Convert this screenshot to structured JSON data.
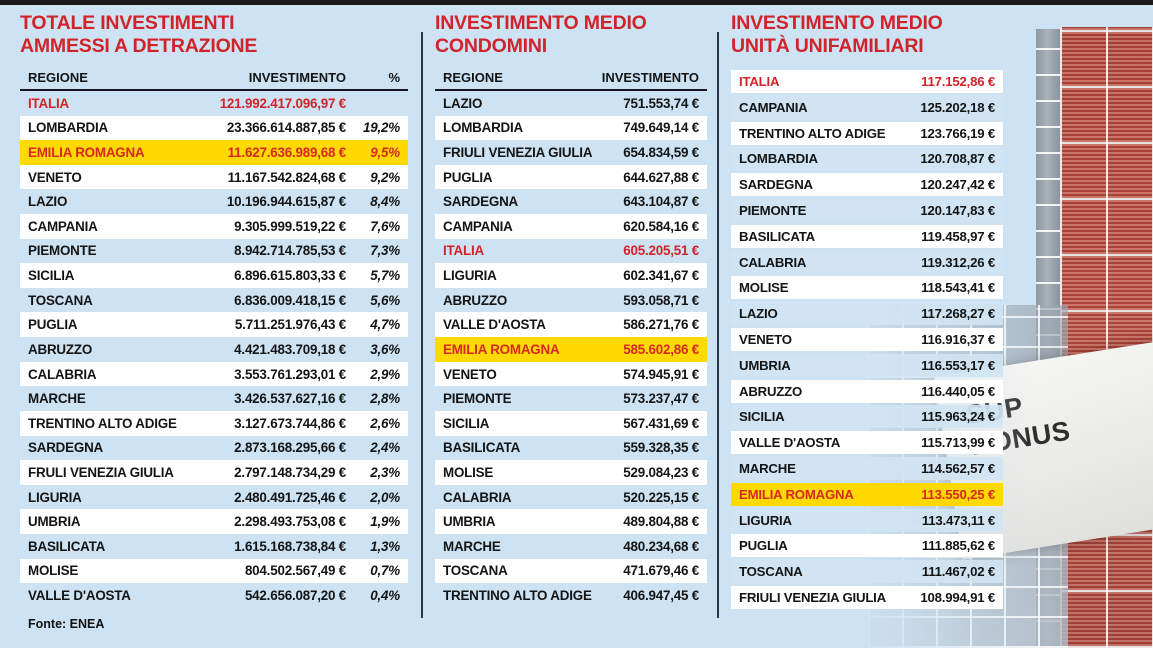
{
  "page": {
    "source_label": "Fonte: ENEA",
    "colors": {
      "background": "#cde2f2",
      "accent_red": "#d2232a",
      "highlight_yellow": "#ffd900",
      "top_bar": "#1a1a1a"
    }
  },
  "photo": {
    "banner_line1": "SUP",
    "banner_line2": "BONUS"
  },
  "chart_data": [
    {
      "type": "table",
      "title_line1": "TOTALE INVESTIMENTI",
      "title_line2": "AMMESSI A DETRAZIONE",
      "columns": {
        "region": "REGIONE",
        "value": "INVESTIMENTO",
        "percent": "%"
      },
      "rows": [
        {
          "region": "ITALIA",
          "value": "121.992.417.096,97 €",
          "percent": "",
          "total": true
        },
        {
          "region": "LOMBARDIA",
          "value": "23.366.614.887,85 €",
          "percent": "19,2%"
        },
        {
          "region": "EMILIA ROMAGNA",
          "value": "11.627.636.989,68 €",
          "percent": "9,5%",
          "highlight": true
        },
        {
          "region": "VENETO",
          "value": "11.167.542.824,68 €",
          "percent": "9,2%"
        },
        {
          "region": "LAZIO",
          "value": "10.196.944.615,87 €",
          "percent": "8,4%"
        },
        {
          "region": "CAMPANIA",
          "value": "9.305.999.519,22 €",
          "percent": "7,6%"
        },
        {
          "region": "PIEMONTE",
          "value": "8.942.714.785,53 €",
          "percent": "7,3%"
        },
        {
          "region": "SICILIA",
          "value": "6.896.615.803,33 €",
          "percent": "5,7%"
        },
        {
          "region": "TOSCANA",
          "value": "6.836.009.418,15 €",
          "percent": "5,6%"
        },
        {
          "region": "PUGLIA",
          "value": "5.711.251.976,43 €",
          "percent": "4,7%"
        },
        {
          "region": "ABRUZZO",
          "value": "4.421.483.709,18 €",
          "percent": "3,6%"
        },
        {
          "region": "CALABRIA",
          "value": "3.553.761.293,01 €",
          "percent": "2,9%"
        },
        {
          "region": "MARCHE",
          "value": "3.426.537.627,16 €",
          "percent": "2,8%"
        },
        {
          "region": "TRENTINO ALTO ADIGE",
          "value": "3.127.673.744,86 €",
          "percent": "2,6%"
        },
        {
          "region": "SARDEGNA",
          "value": "2.873.168.295,66 €",
          "percent": "2,4%"
        },
        {
          "region": "FRULI VENEZIA GIULIA",
          "value": "2.797.148.734,29 €",
          "percent": "2,3%"
        },
        {
          "region": "LIGURIA",
          "value": "2.480.491.725,46 €",
          "percent": "2,0%"
        },
        {
          "region": "UMBRIA",
          "value": "2.298.493.753,08 €",
          "percent": "1,9%"
        },
        {
          "region": "BASILICATA",
          "value": "1.615.168.738,84 €",
          "percent": "1,3%"
        },
        {
          "region": "MOLISE",
          "value": "804.502.567,49 €",
          "percent": "0,7%"
        },
        {
          "region": "VALLE D'AOSTA",
          "value": "542.656.087,20 €",
          "percent": "0,4%"
        }
      ]
    },
    {
      "type": "table",
      "title_line1": "INVESTIMENTO MEDIO",
      "title_line2": "CONDOMINI",
      "columns": {
        "region": "REGIONE",
        "value": "INVESTIMENTO"
      },
      "rows": [
        {
          "region": "LAZIO",
          "value": "751.553,74 €"
        },
        {
          "region": "LOMBARDIA",
          "value": "749.649,14 €"
        },
        {
          "region": "FRIULI VENEZIA GIULIA",
          "value": "654.834,59 €"
        },
        {
          "region": "PUGLIA",
          "value": "644.627,88 €"
        },
        {
          "region": "SARDEGNA",
          "value": "643.104,87 €"
        },
        {
          "region": "CAMPANIA",
          "value": "620.584,16 €"
        },
        {
          "region": "ITALIA",
          "value": "605.205,51 €",
          "total": true
        },
        {
          "region": "LIGURIA",
          "value": "602.341,67 €"
        },
        {
          "region": "ABRUZZO",
          "value": "593.058,71 €"
        },
        {
          "region": "VALLE D'AOSTA",
          "value": "586.271,76 €"
        },
        {
          "region": "EMILIA ROMAGNA",
          "value": "585.602,86 €",
          "highlight": true
        },
        {
          "region": "VENETO",
          "value": "574.945,91 €"
        },
        {
          "region": "PIEMONTE",
          "value": "573.237,47 €"
        },
        {
          "region": "SICILIA",
          "value": "567.431,69 €"
        },
        {
          "region": "BASILICATA",
          "value": "559.328,35 €"
        },
        {
          "region": "MOLISE",
          "value": "529.084,23 €"
        },
        {
          "region": "CALABRIA",
          "value": "520.225,15 €"
        },
        {
          "region": "UMBRIA",
          "value": "489.804,88 €"
        },
        {
          "region": "MARCHE",
          "value": "480.234,68 €"
        },
        {
          "region": "TOSCANA",
          "value": "471.679,46 €"
        },
        {
          "region": "TRENTINO ALTO ADIGE",
          "value": "406.947,45 €"
        }
      ]
    },
    {
      "type": "table",
      "title_line1": "INVESTIMENTO MEDIO",
      "title_line2": "UNITÀ UNIFAMILIARI",
      "columns": {
        "region": "REGIONE",
        "value": "INVESTIMENTO"
      },
      "rows": [
        {
          "region": "ITALIA",
          "value": "117.152,86 €",
          "total": true
        },
        {
          "region": "CAMPANIA",
          "value": "125.202,18 €"
        },
        {
          "region": "TRENTINO ALTO ADIGE",
          "value": "123.766,19 €"
        },
        {
          "region": "LOMBARDIA",
          "value": "120.708,87 €"
        },
        {
          "region": "SARDEGNA",
          "value": "120.247,42 €"
        },
        {
          "region": "PIEMONTE",
          "value": "120.147,83 €"
        },
        {
          "region": "BASILICATA",
          "value": "119.458,97 €"
        },
        {
          "region": "CALABRIA",
          "value": "119.312,26 €"
        },
        {
          "region": "MOLISE",
          "value": "118.543,41 €"
        },
        {
          "region": "LAZIO",
          "value": "117.268,27 €"
        },
        {
          "region": "VENETO",
          "value": "116.916,37 €"
        },
        {
          "region": "UMBRIA",
          "value": "116.553,17 €"
        },
        {
          "region": "ABRUZZO",
          "value": "116.440,05 €"
        },
        {
          "region": "SICILIA",
          "value": "115.963,24 €"
        },
        {
          "region": "VALLE D'AOSTA",
          "value": "115.713,99 €"
        },
        {
          "region": "MARCHE",
          "value": "114.562,57 €"
        },
        {
          "region": "EMILIA ROMAGNA",
          "value": "113.550,25 €",
          "highlight": true
        },
        {
          "region": "LIGURIA",
          "value": "113.473,11 €"
        },
        {
          "region": "PUGLIA",
          "value": "111.885,62 €"
        },
        {
          "region": "TOSCANA",
          "value": "111.467,02 €"
        },
        {
          "region": "FRIULI VENEZIA GIULIA",
          "value": "108.994,91 €"
        }
      ]
    }
  ]
}
